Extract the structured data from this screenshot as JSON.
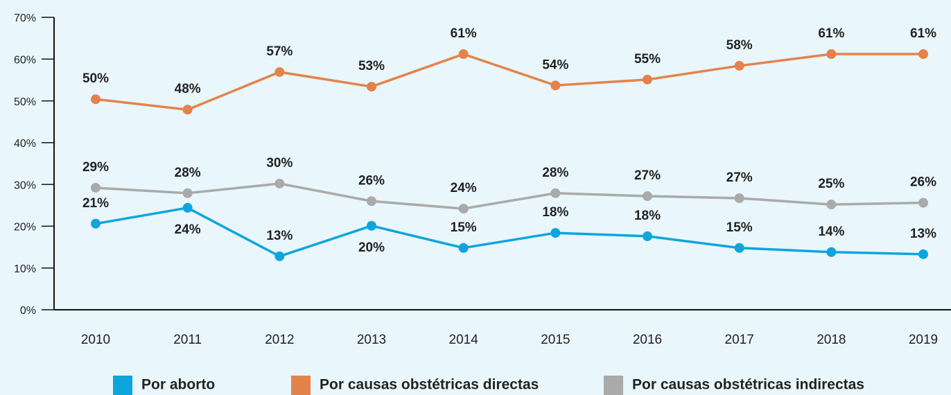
{
  "chart_data": {
    "type": "line",
    "categories": [
      "2010",
      "2011",
      "2012",
      "2013",
      "2014",
      "2015",
      "2016",
      "2017",
      "2018",
      "2019"
    ],
    "series": [
      {
        "name": "Por aborto",
        "color": "#0ea5dd",
        "values": [
          20.6,
          24.4,
          12.8,
          20.1,
          14.8,
          18.4,
          17.6,
          14.8,
          13.8,
          13.3
        ],
        "value_labels": [
          "21%",
          "24%",
          "13%",
          "20%",
          "15%",
          "18%",
          "18%",
          "15%",
          "14%",
          "13%"
        ]
      },
      {
        "name": "Por causas obstétricas directas",
        "color": "#e3834b",
        "values": [
          50.4,
          47.9,
          56.9,
          53.4,
          61.2,
          53.7,
          55.1,
          58.4,
          61.2,
          61.2
        ],
        "value_labels": [
          "50%",
          "48%",
          "57%",
          "53%",
          "61%",
          "54%",
          "55%",
          "58%",
          "61%",
          "61%"
        ]
      },
      {
        "name": "Por causas obstétricas indirectas",
        "color": "#aaaaaa",
        "values": [
          29.2,
          27.9,
          30.2,
          26.0,
          24.2,
          27.9,
          27.2,
          26.7,
          25.2,
          25.6
        ],
        "value_labels": [
          "29%",
          "28%",
          "30%",
          "26%",
          "24%",
          "28%",
          "27%",
          "27%",
          "25%",
          "26%"
        ]
      }
    ],
    "ylim": [
      0,
      70
    ],
    "yticks": [
      {
        "value": 0,
        "label": "0%"
      },
      {
        "value": 10,
        "label": "10%"
      },
      {
        "value": 20,
        "label": "20%"
      },
      {
        "value": 30,
        "label": "30%"
      },
      {
        "value": 40,
        "label": "40%"
      },
      {
        "value": 50,
        "label": "50%"
      },
      {
        "value": 60,
        "label": "60%"
      },
      {
        "value": 70,
        "label": "70%"
      }
    ],
    "grid": false
  }
}
